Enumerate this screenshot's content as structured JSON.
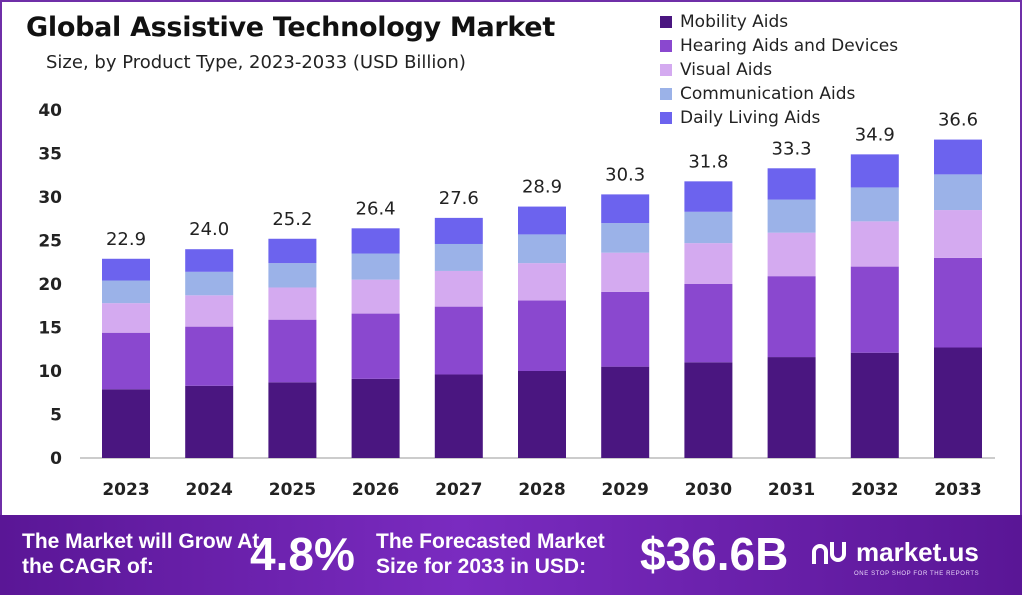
{
  "footer": {
    "cagr_text": "The Market will Grow At the CAGR of:",
    "cagr_value": "4.8%",
    "forecast_text": "The Forecasted Market Size for 2033 in USD:",
    "forecast_value": "$36.6B",
    "brand": "market.us",
    "brand_tagline": "ONE STOP SHOP FOR THE REPORTS"
  },
  "chart_data": {
    "type": "bar",
    "stacked": true,
    "title": "Global Assistive Technology Market",
    "subtitle": "Size, by Product Type, 2023-2033 (USD Billion)",
    "categories": [
      "2023",
      "2024",
      "2025",
      "2026",
      "2027",
      "2028",
      "2029",
      "2030",
      "2031",
      "2032",
      "2033"
    ],
    "series": [
      {
        "name": "Mobility Aids",
        "color": "#4a1680",
        "values": [
          7.9,
          8.3,
          8.7,
          9.1,
          9.6,
          10.0,
          10.5,
          11.0,
          11.6,
          12.1,
          12.7
        ]
      },
      {
        "name": "Hearing Aids and Devices",
        "color": "#8a48cf",
        "values": [
          6.5,
          6.8,
          7.2,
          7.5,
          7.8,
          8.1,
          8.6,
          9.0,
          9.3,
          9.9,
          10.3
        ]
      },
      {
        "name": "Visual Aids",
        "color": "#d4aaf0",
        "values": [
          3.4,
          3.6,
          3.7,
          3.9,
          4.1,
          4.3,
          4.5,
          4.7,
          5.0,
          5.2,
          5.5
        ]
      },
      {
        "name": "Communication Aids",
        "color": "#9bb2e8",
        "values": [
          2.6,
          2.7,
          2.8,
          3.0,
          3.1,
          3.3,
          3.4,
          3.6,
          3.8,
          3.9,
          4.1
        ]
      },
      {
        "name": "Daily Living Aids",
        "color": "#6c63ee",
        "values": [
          2.5,
          2.6,
          2.8,
          2.9,
          3.0,
          3.2,
          3.3,
          3.5,
          3.6,
          3.8,
          4.0
        ]
      }
    ],
    "totals": [
      22.9,
      24.0,
      25.2,
      26.4,
      27.6,
      28.9,
      30.3,
      31.8,
      33.3,
      34.9,
      36.6
    ],
    "total_labels": [
      "22.9",
      "24.0",
      "25.2",
      "26.4",
      "27.6",
      "28.9",
      "30.3",
      "31.8",
      "33.3",
      "34.9",
      "36.6"
    ],
    "ylim": [
      0,
      40
    ],
    "yticks": [
      "0",
      "5",
      "10",
      "15",
      "20",
      "25",
      "30",
      "35",
      "40"
    ],
    "legend_position": "top-right",
    "grid": false
  }
}
